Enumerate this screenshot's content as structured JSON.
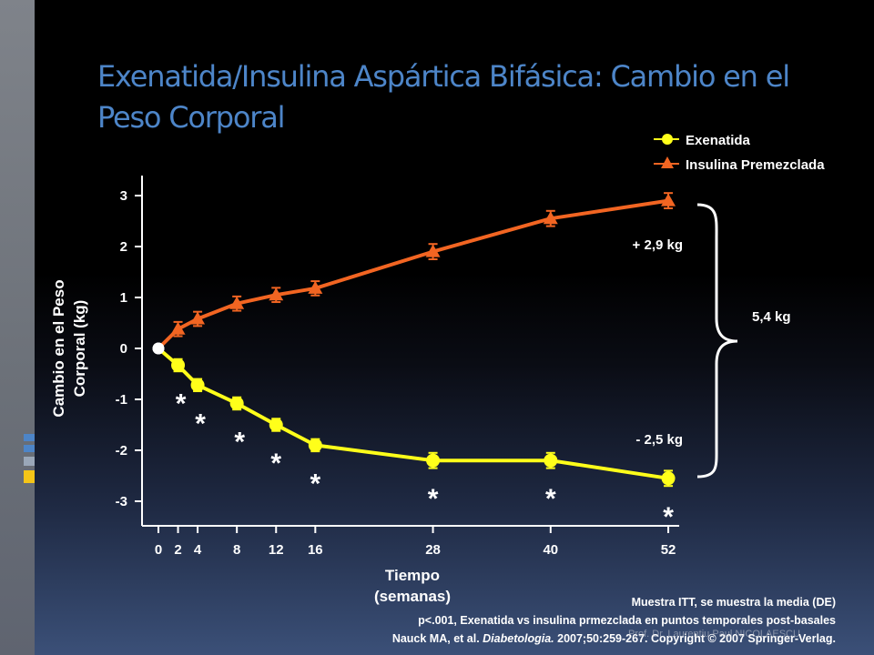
{
  "slide": {
    "title": "Exenatida/Insulina Aspártica Bifásica: Cambio en el Peso Corporal",
    "footnote_line1": "Muestra ITT, se muestra la media (DE)",
    "footnote_line2": "p<.001, Exenatida vs insulina prmezclada en puntos temporales post-basales",
    "footnote_line3_prefix": "Nauck MA, et al. ",
    "footnote_line3_journal": "Diabetologia.",
    "footnote_line3_suffix": " 2007;50:259-267. Copyright © 2007 Springer-Verlag.",
    "watermark": "Prof. Dr. Laurentiu Paul NICOLAESCU",
    "accent_title_color": "#4d85c8",
    "strip_square_colors": [
      "#4d85c8",
      "#4d85c8",
      "#9aa7b8",
      "#f5c518"
    ]
  },
  "chart_data": {
    "type": "line",
    "ylabel_line1": "Cambio en el Peso",
    "ylabel_line2": "Corporal (kg)",
    "xlabel_line1": "Tiempo",
    "xlabel_line2": "(semanas)",
    "x": [
      0,
      2,
      4,
      8,
      12,
      16,
      28,
      40,
      52
    ],
    "ylim": [
      -3.5,
      3.5
    ],
    "yticks": [
      -3,
      -2,
      -1,
      0,
      1,
      2,
      3
    ],
    "ytick_labels": [
      "-3",
      "-2",
      "-1",
      "0",
      "1",
      "2",
      "3"
    ],
    "xticks": [
      0,
      2,
      4,
      8,
      12,
      16,
      28,
      40,
      52
    ],
    "xtick_labels": [
      "0",
      "2",
      "4",
      "8",
      "12",
      "16",
      "28",
      "40",
      "52"
    ],
    "grid": false,
    "legend_position": "top-right",
    "series": [
      {
        "name": "Exenatida",
        "color": "#ffff1a",
        "marker": "circle",
        "values": [
          0,
          -0.33,
          -0.72,
          -1.08,
          -1.5,
          -1.9,
          -2.2,
          -2.2,
          -2.55
        ],
        "errors": [
          0,
          0.12,
          0.12,
          0.12,
          0.12,
          0.12,
          0.15,
          0.15,
          0.15
        ]
      },
      {
        "name": "Insulina Premezclada",
        "color": "#f26522",
        "marker": "triangle",
        "values": [
          0,
          0.38,
          0.58,
          0.88,
          1.05,
          1.18,
          1.9,
          2.55,
          2.9
        ],
        "errors": [
          0,
          0.14,
          0.14,
          0.14,
          0.14,
          0.14,
          0.15,
          0.15,
          0.15
        ]
      }
    ],
    "significance_marker": "*",
    "significance_x": [
      2,
      4,
      8,
      12,
      16,
      28,
      40,
      52
    ],
    "annotation_insulin": "+ 2,9 kg",
    "annotation_exenatide": "- 2,5 kg",
    "annotation_difference": "5,4 kg"
  }
}
